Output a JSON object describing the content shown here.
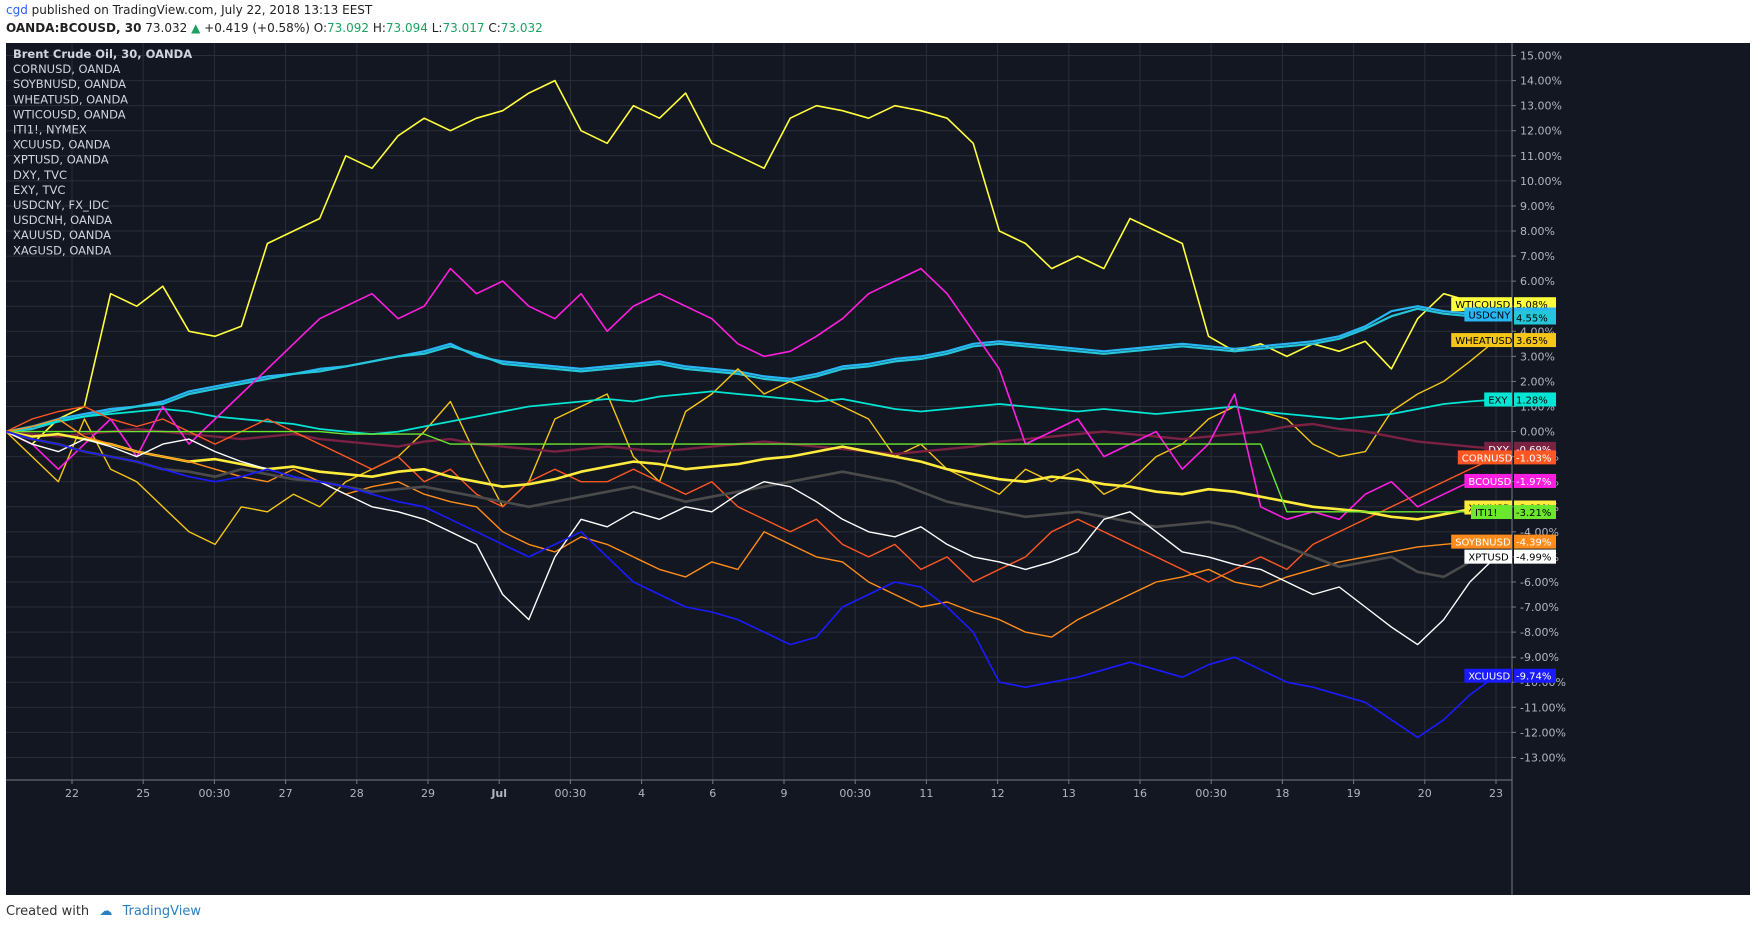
{
  "header": {
    "user": "cgd",
    "published_text": "published on TradingView.com, July 22, 2018 13:13 EEST",
    "symbol": "OANDA:BCOUSD, 30",
    "last": "73.032",
    "change": "+0.419 (+0.58%)",
    "o_label": "O:",
    "o": "73.092",
    "h_label": "H:",
    "h": "73.094",
    "l_label": "L:",
    "l": "73.017",
    "c_label": "C:",
    "c": "73.032"
  },
  "footer": {
    "created_with": "Created with",
    "brand": "TradingView"
  },
  "chart_data": {
    "type": "line",
    "background": "#131722",
    "legend_placement": "top-left",
    "legend": [
      "Brent Crude Oil, 30, OANDA",
      "CORNUSD, OANDA",
      "SOYBNUSD, OANDA",
      "WHEATUSD, OANDA",
      "WTICOUSD, OANDA",
      "ITI1!, NYMEX",
      "XCUUSD, OANDA",
      "XPTUSD, OANDA",
      "DXY, TVC",
      "EXY, TVC",
      "USDCNY, FX_IDC",
      "USDCNH, OANDA",
      "XAUUSD, OANDA",
      "XAGUSD, OANDA"
    ],
    "x_ticks": [
      "22",
      "25",
      "00:30",
      "27",
      "28",
      "29",
      "Jul",
      "00:30",
      "4",
      "6",
      "9",
      "00:30",
      "11",
      "12",
      "13",
      "16",
      "00:30",
      "18",
      "19",
      "20",
      "23"
    ],
    "y_ticks": [
      "15.00%",
      "14.00%",
      "13.00%",
      "12.00%",
      "11.00%",
      "10.00%",
      "9.00%",
      "8.00%",
      "7.00%",
      "6.00%",
      "5.00%",
      "4.00%",
      "3.00%",
      "2.00%",
      "1.00%",
      "0.00%",
      "-1.00%",
      "-2.00%",
      "-3.00%",
      "-4.00%",
      "-5.00%",
      "-6.00%",
      "-7.00%",
      "-8.00%",
      "-9.00%",
      "-10.00%",
      "-11.00%",
      "-12.00%",
      "-13.00%"
    ],
    "ylim": [
      -13.9,
      15.5
    ],
    "grid": true,
    "series": [
      {
        "name": "WTICOUSD",
        "label": "WTICOUSD",
        "value_label": "5.08%",
        "last": 5.08,
        "color": "#ffff3b",
        "tag_text": "#000000",
        "width": 1.6,
        "values": [
          0,
          -0.5,
          0.5,
          1,
          5.5,
          5,
          5.8,
          4,
          3.8,
          4.2,
          7.5,
          8,
          8.5,
          11,
          10.5,
          11.8,
          12.5,
          12,
          12.5,
          12.8,
          13.5,
          14,
          12,
          11.5,
          13,
          12.5,
          13.5,
          11.5,
          11,
          10.5,
          12.5,
          13,
          12.8,
          12.5,
          13,
          12.8,
          12.5,
          11.5,
          8,
          7.5,
          6.5,
          7,
          6.5,
          8.5,
          8,
          7.5,
          3.8,
          3.2,
          3.5,
          3,
          3.5,
          3.2,
          3.6,
          2.5,
          4.5,
          5.5,
          5.2,
          5.08
        ]
      },
      {
        "name": "USDCNY",
        "label": "USDCNY",
        "value_label": "4.67%",
        "last": 4.67,
        "color": "#29b6f6",
        "tag_text": "#000000",
        "width": 2.2,
        "values": [
          0,
          0.2,
          0.5,
          0.7,
          0.9,
          1,
          1.2,
          1.6,
          1.8,
          2,
          2.2,
          2.3,
          2.5,
          2.6,
          2.8,
          3,
          3.2,
          3.5,
          3,
          2.8,
          2.7,
          2.6,
          2.5,
          2.6,
          2.7,
          2.8,
          2.6,
          2.5,
          2.4,
          2.2,
          2.1,
          2.3,
          2.6,
          2.7,
          2.9,
          3,
          3.2,
          3.5,
          3.6,
          3.5,
          3.4,
          3.3,
          3.2,
          3.3,
          3.4,
          3.5,
          3.4,
          3.3,
          3.4,
          3.5,
          3.6,
          3.8,
          4.2,
          4.8,
          5,
          4.8,
          4.7,
          4.67
        ]
      },
      {
        "name": "USDCNH",
        "label": "",
        "value_label": "4.55%",
        "last": 4.55,
        "color": "#26c6da",
        "tag_text": "#000000",
        "width": 2.2,
        "values": [
          0,
          0.1,
          0.4,
          0.6,
          0.8,
          1,
          1.1,
          1.5,
          1.7,
          1.9,
          2.1,
          2.3,
          2.4,
          2.6,
          2.8,
          3,
          3.1,
          3.4,
          3.1,
          2.7,
          2.6,
          2.5,
          2.4,
          2.5,
          2.6,
          2.7,
          2.5,
          2.4,
          2.3,
          2.1,
          2,
          2.2,
          2.5,
          2.6,
          2.8,
          2.9,
          3.1,
          3.4,
          3.5,
          3.4,
          3.3,
          3.2,
          3.1,
          3.2,
          3.3,
          3.4,
          3.3,
          3.2,
          3.3,
          3.4,
          3.5,
          3.7,
          4.1,
          4.6,
          4.9,
          4.7,
          4.6,
          4.55
        ]
      },
      {
        "name": "WHEATUSD",
        "label": "WHEATUSD",
        "value_label": "3.65%",
        "last": 3.65,
        "color": "#f5c518",
        "tag_text": "#000000",
        "width": 1.4,
        "values": [
          0,
          -1,
          -2,
          0.5,
          -1.5,
          -2,
          -3,
          -4,
          -4.5,
          -3,
          -3.2,
          -2.5,
          -3,
          -2,
          -1.5,
          -1,
          0,
          1.2,
          -1,
          -3,
          -2,
          0.5,
          1,
          1.5,
          -1,
          -2,
          0.8,
          1.5,
          2.5,
          1.5,
          2,
          1.5,
          1,
          0.5,
          -1,
          -0.5,
          -1.5,
          -2,
          -2.5,
          -1.5,
          -2,
          -1.5,
          -2.5,
          -2,
          -1,
          -0.5,
          0.5,
          1,
          0.8,
          0.5,
          -0.5,
          -1,
          -0.8,
          0.8,
          1.5,
          2,
          2.8,
          3.65
        ]
      },
      {
        "name": "EXY",
        "label": "EXY",
        "value_label": "1.28%",
        "last": 1.28,
        "color": "#00e5d4",
        "tag_text": "#000000",
        "width": 1.8,
        "values": [
          0,
          0.2,
          0.4,
          0.6,
          0.7,
          0.8,
          0.9,
          0.8,
          0.6,
          0.5,
          0.4,
          0.3,
          0.1,
          0,
          -0.1,
          0,
          0.2,
          0.4,
          0.6,
          0.8,
          1,
          1.1,
          1.2,
          1.3,
          1.2,
          1.4,
          1.5,
          1.6,
          1.5,
          1.4,
          1.3,
          1.2,
          1.3,
          1.1,
          0.9,
          0.8,
          0.9,
          1,
          1.1,
          1,
          0.9,
          0.8,
          0.9,
          0.8,
          0.7,
          0.8,
          0.9,
          1,
          0.8,
          0.7,
          0.6,
          0.5,
          0.6,
          0.7,
          0.9,
          1.1,
          1.2,
          1.28
        ]
      },
      {
        "name": "DXY",
        "label": "DXY",
        "value_label": "-0.69%",
        "last": -0.69,
        "color": "#7b2142",
        "tag_text": "#ffffff",
        "width": 2.4,
        "values": [
          0,
          -0.1,
          -0.2,
          -0.1,
          0,
          0.1,
          0,
          -0.1,
          -0.2,
          -0.3,
          -0.2,
          -0.1,
          -0.3,
          -0.4,
          -0.5,
          -0.6,
          -0.4,
          -0.3,
          -0.5,
          -0.6,
          -0.7,
          -0.8,
          -0.7,
          -0.6,
          -0.7,
          -0.8,
          -0.7,
          -0.6,
          -0.5,
          -0.4,
          -0.5,
          -0.6,
          -0.7,
          -0.8,
          -0.9,
          -0.8,
          -0.7,
          -0.6,
          -0.4,
          -0.3,
          -0.2,
          -0.1,
          0,
          -0.1,
          -0.2,
          -0.3,
          -0.2,
          -0.1,
          0,
          0.2,
          0.3,
          0.1,
          0,
          -0.2,
          -0.4,
          -0.5,
          -0.6,
          -0.69
        ]
      },
      {
        "name": "CORNUSD",
        "label": "CORNUSD",
        "value_label": "-1.03%",
        "last": -1.03,
        "color": "#ff5722",
        "tag_text": "#ffffff",
        "width": 1.4,
        "values": [
          0,
          0.5,
          0.8,
          1,
          0.5,
          0.2,
          0.5,
          0,
          -0.5,
          0,
          0.5,
          0,
          -0.5,
          -1,
          -1.5,
          -1,
          -2,
          -1.5,
          -2.5,
          -3,
          -2,
          -1.5,
          -2,
          -2,
          -1.5,
          -2,
          -2.5,
          -2,
          -3,
          -3.5,
          -4,
          -3.5,
          -4.5,
          -5,
          -4.5,
          -5.5,
          -5,
          -6,
          -5.5,
          -5,
          -4,
          -3.5,
          -4,
          -4.5,
          -5,
          -5.5,
          -6,
          -5.5,
          -5,
          -5.5,
          -4.5,
          -4,
          -3.5,
          -3,
          -2.5,
          -2,
          -1.5,
          -1.03
        ]
      },
      {
        "name": "BCOUSD",
        "label": "BCOUSD",
        "value_label": "-1.97%",
        "last": -1.97,
        "color": "#ff1ee0",
        "tag_text": "#ffffff",
        "width": 1.6,
        "values": [
          0,
          -0.5,
          -1.5,
          -0.5,
          0.5,
          -1,
          1,
          -0.5,
          0.5,
          1.5,
          2.5,
          3.5,
          4.5,
          5,
          5.5,
          4.5,
          5,
          6.5,
          5.5,
          6,
          5,
          4.5,
          5.5,
          4,
          5,
          5.5,
          5,
          4.5,
          3.5,
          3,
          3.2,
          3.8,
          4.5,
          5.5,
          6,
          6.5,
          5.5,
          4,
          2.5,
          -0.5,
          0,
          0.5,
          -1,
          -0.5,
          0,
          -1.5,
          -0.5,
          1.5,
          -3,
          -3.5,
          -3.2,
          -3.5,
          -2.5,
          -2,
          -3,
          -2.5,
          -2,
          -1.97
        ]
      },
      {
        "name": "XAUUSD",
        "label": "XAUUSD",
        "value_label": "-3.03%",
        "last": -3.03,
        "color": "#ffeb3b",
        "tag_text": "#000000",
        "width": 2.6,
        "values": [
          0,
          -0.2,
          -0.1,
          -0.3,
          -0.5,
          -0.8,
          -1,
          -1.2,
          -1.1,
          -1.3,
          -1.5,
          -1.4,
          -1.6,
          -1.7,
          -1.8,
          -1.6,
          -1.5,
          -1.8,
          -2,
          -2.2,
          -2.1,
          -1.9,
          -1.6,
          -1.4,
          -1.2,
          -1.3,
          -1.5,
          -1.4,
          -1.3,
          -1.1,
          -1,
          -0.8,
          -0.6,
          -0.8,
          -1,
          -1.2,
          -1.5,
          -1.7,
          -1.9,
          -2,
          -1.8,
          -1.9,
          -2.1,
          -2.2,
          -2.4,
          -2.5,
          -2.3,
          -2.4,
          -2.6,
          -2.8,
          -3,
          -3.1,
          -3.2,
          -3.4,
          -3.5,
          -3.3,
          -3.1,
          -3.03
        ]
      },
      {
        "name": "ITI1!",
        "label": "ITI1!",
        "value_label": "-3.21%",
        "last": -3.21,
        "color": "#6be82e",
        "tag_text": "#000000",
        "width": 1.4,
        "values": [
          0,
          0,
          0,
          0,
          0,
          0,
          0,
          0,
          0,
          0,
          0,
          0,
          0,
          -0.1,
          -0.1,
          -0.1,
          -0.1,
          -0.5,
          -0.5,
          -0.5,
          -0.5,
          -0.5,
          -0.5,
          -0.5,
          -0.5,
          -0.5,
          -0.5,
          -0.5,
          -0.5,
          -0.5,
          -0.5,
          -0.5,
          -0.5,
          -0.5,
          -0.5,
          -0.5,
          -0.5,
          -0.5,
          -0.5,
          -0.5,
          -0.5,
          -0.5,
          -0.5,
          -0.5,
          -0.5,
          -0.5,
          -0.5,
          -0.5,
          -0.5,
          -3.2,
          -3.2,
          -3.2,
          -3.2,
          -3.2,
          -3.2,
          -3.2,
          -3.2,
          -3.21
        ]
      },
      {
        "name": "SOYBNUSD",
        "label": "SOYBNUSD",
        "value_label": "-4.39%",
        "last": -4.39,
        "color": "#ff8c1a",
        "tag_text": "#ffffff",
        "width": 1.4,
        "values": [
          0,
          0.2,
          0.5,
          -0.2,
          -0.5,
          -0.8,
          -1,
          -1.2,
          -1.5,
          -1.8,
          -2,
          -1.5,
          -2,
          -2.5,
          -2.2,
          -2,
          -2.5,
          -2.8,
          -3,
          -4,
          -4.5,
          -4.8,
          -4.2,
          -4.5,
          -5,
          -5.5,
          -5.8,
          -5.2,
          -5.5,
          -4,
          -4.5,
          -5,
          -5.2,
          -6,
          -6.5,
          -7,
          -6.8,
          -7.2,
          -7.5,
          -8,
          -8.2,
          -7.5,
          -7,
          -6.5,
          -6,
          -5.8,
          -5.5,
          -6,
          -6.2,
          -5.8,
          -5.5,
          -5.2,
          -5,
          -4.8,
          -4.6,
          -4.5,
          -4.4,
          -4.39
        ]
      },
      {
        "name": "XAGUSD",
        "label": "",
        "value_label": "-4.97%",
        "last": -4.97,
        "color": "#4a4a4a",
        "tag_text": "#ffffff",
        "width": 2.6,
        "values": [
          0,
          -0.3,
          -0.5,
          -0.8,
          -1,
          -1.2,
          -1.5,
          -1.6,
          -1.8,
          -1.5,
          -1.7,
          -1.9,
          -2,
          -2.2,
          -2.4,
          -2.3,
          -2.2,
          -2.4,
          -2.6,
          -2.8,
          -3,
          -2.8,
          -2.6,
          -2.4,
          -2.2,
          -2.5,
          -2.8,
          -2.6,
          -2.4,
          -2.2,
          -2,
          -1.8,
          -1.6,
          -1.8,
          -2,
          -2.4,
          -2.8,
          -3,
          -3.2,
          -3.4,
          -3.3,
          -3.2,
          -3.4,
          -3.6,
          -3.8,
          -3.7,
          -3.6,
          -3.8,
          -4.2,
          -4.6,
          -5,
          -5.4,
          -5.2,
          -5,
          -5.6,
          -5.8,
          -5.2,
          -4.97
        ]
      },
      {
        "name": "XPTUSD",
        "label": "XPTUSD",
        "value_label": "-4.99%",
        "last": -4.99,
        "color": "#ffffff",
        "tag_text": "#000000",
        "width": 1.4,
        "values": [
          0,
          -0.5,
          -0.8,
          -0.3,
          -0.6,
          -1,
          -0.5,
          -0.3,
          -0.8,
          -1.2,
          -1.5,
          -1.8,
          -2,
          -2.5,
          -3,
          -3.2,
          -3.5,
          -4,
          -4.5,
          -6.5,
          -7.5,
          -5,
          -3.5,
          -3.8,
          -3.2,
          -3.5,
          -3,
          -3.2,
          -2.5,
          -2,
          -2.2,
          -2.8,
          -3.5,
          -4,
          -4.2,
          -3.8,
          -4.5,
          -5,
          -5.2,
          -5.5,
          -5.2,
          -4.8,
          -3.5,
          -3.2,
          -4,
          -4.8,
          -5,
          -5.3,
          -5.5,
          -6,
          -6.5,
          -6.2,
          -7,
          -7.8,
          -8.5,
          -7.5,
          -6,
          -4.99
        ]
      },
      {
        "name": "XCUUSD",
        "label": "XCUUSD",
        "value_label": "-9.74%",
        "last": -9.74,
        "color": "#1a1aff",
        "tag_text": "#ffffff",
        "width": 1.6,
        "values": [
          0,
          -0.3,
          -0.5,
          -0.8,
          -1,
          -1.2,
          -1.5,
          -1.8,
          -2,
          -1.8,
          -1.5,
          -1.8,
          -2,
          -2.2,
          -2.5,
          -2.8,
          -3,
          -3.5,
          -4,
          -4.5,
          -5,
          -4.5,
          -4,
          -5,
          -6,
          -6.5,
          -7,
          -7.2,
          -7.5,
          -8,
          -8.5,
          -8.2,
          -7,
          -6.5,
          -6,
          -6.2,
          -7,
          -8,
          -10,
          -10.2,
          -10,
          -9.8,
          -9.5,
          -9.2,
          -9.5,
          -9.8,
          -9.3,
          -9,
          -9.5,
          -10,
          -10.2,
          -10.5,
          -10.8,
          -11.5,
          -12.2,
          -11.5,
          -10.5,
          -9.74
        ]
      }
    ]
  }
}
